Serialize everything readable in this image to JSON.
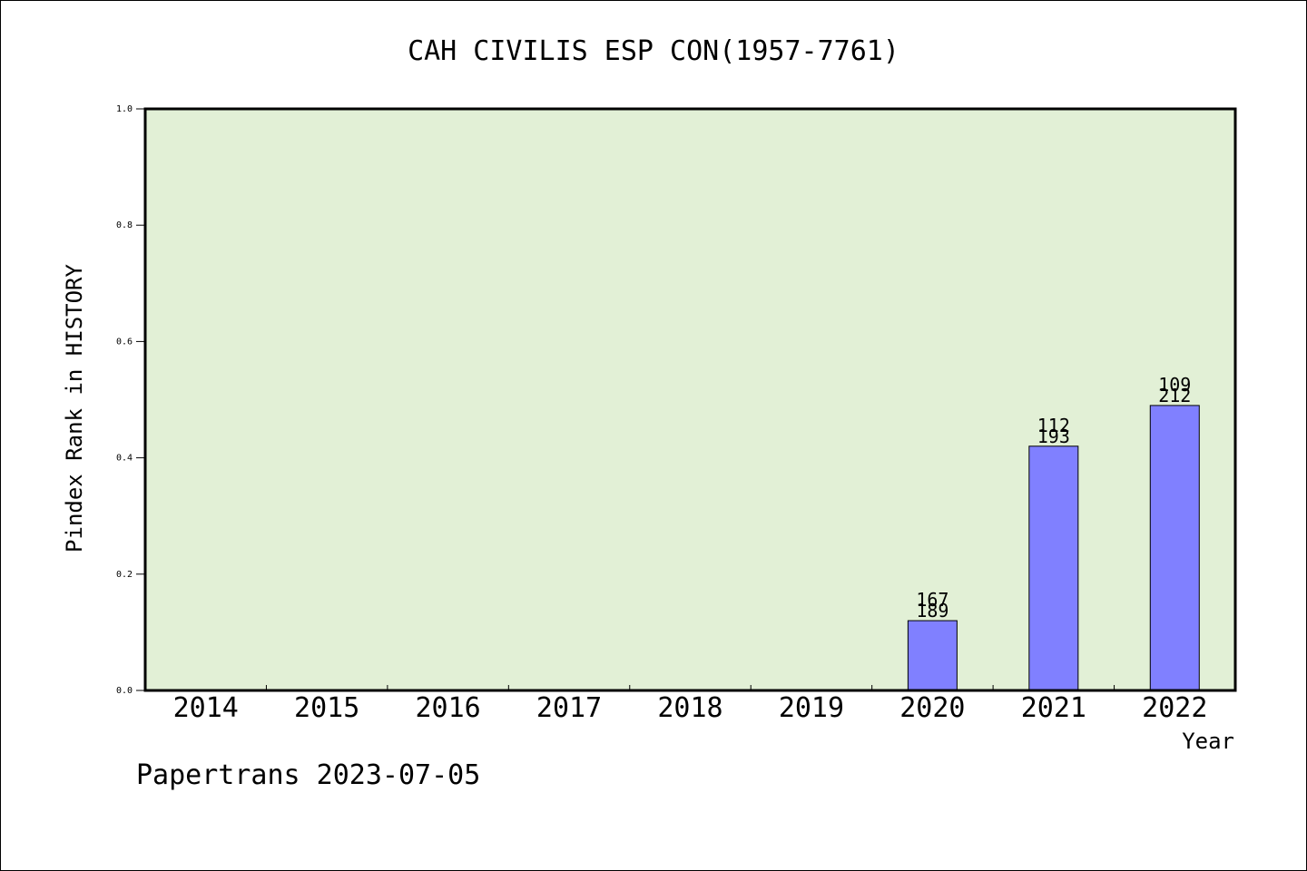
{
  "chart_data": {
    "type": "bar",
    "title": "CAH CIVILIS ESP CON(1957-7761)",
    "xlabel": "Year",
    "ylabel": "Pindex Rank in HISTORY",
    "categories": [
      "2014",
      "2015",
      "2016",
      "2017",
      "2018",
      "2019",
      "2020",
      "2021",
      "2022"
    ],
    "values": [
      null,
      null,
      null,
      null,
      null,
      null,
      0.12,
      0.42,
      0.49
    ],
    "bar_labels_top": [
      "",
      "",
      "",
      "",
      "",
      "",
      "167",
      "112",
      "109"
    ],
    "bar_labels_bottom": [
      "",
      "",
      "",
      "",
      "",
      "",
      "189",
      "193",
      "212"
    ],
    "ylim": [
      0,
      1.0
    ],
    "yticks": [
      "0.0",
      "0.2",
      "0.4",
      "0.6",
      "0.8",
      "1.0"
    ],
    "grid": false,
    "legend": "none",
    "colors": {
      "plot_background": "#e2f0d6",
      "bar_fill": "#8080ff",
      "bar_stroke": "#000000"
    }
  },
  "footer": {
    "text": "Papertrans 2023-07-05"
  }
}
